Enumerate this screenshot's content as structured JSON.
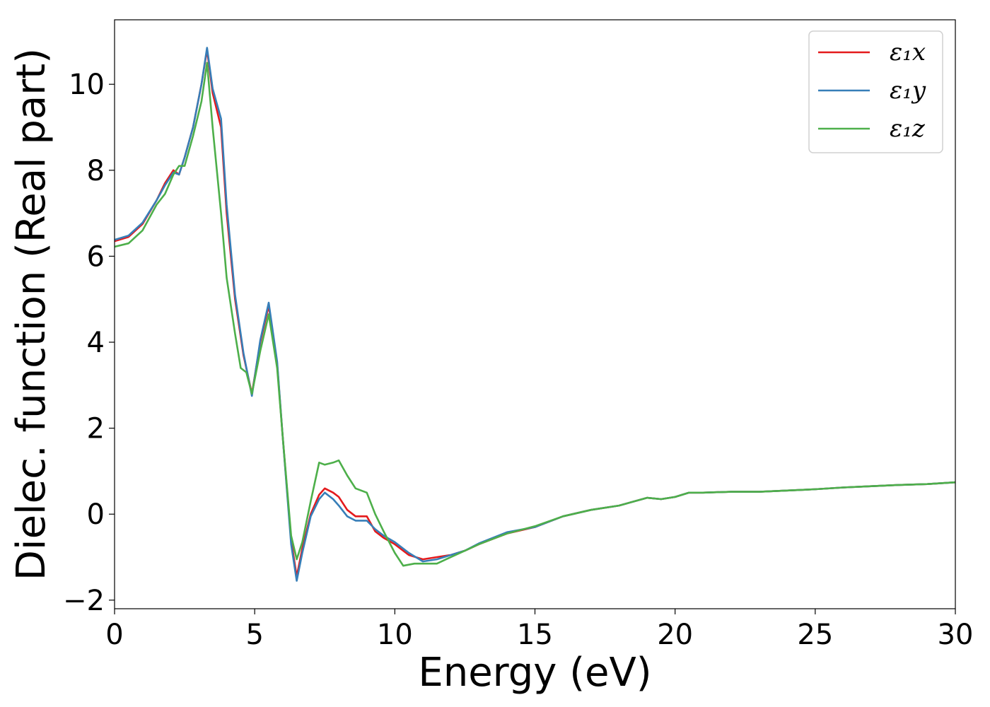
{
  "chart_data": {
    "type": "line",
    "xlabel": "Energy (eV)",
    "ylabel": "Dielec. function (Real part)",
    "xlim": [
      0,
      30
    ],
    "ylim": [
      -2.2,
      11.5
    ],
    "xticks": [
      0,
      5,
      10,
      15,
      20,
      25,
      30
    ],
    "xtick_labels": [
      "0",
      "5",
      "10",
      "15",
      "20",
      "25",
      "30"
    ],
    "yticks": [
      -2,
      0,
      2,
      4,
      6,
      8,
      10
    ],
    "ytick_labels": [
      "−2",
      "0",
      "2",
      "4",
      "6",
      "8",
      "10"
    ],
    "grid": false,
    "legend_position": "top-right",
    "series": [
      {
        "name": "ε₁x",
        "color": "#e41a1c",
        "x": [
          0,
          0.5,
          1.0,
          1.5,
          1.8,
          2.1,
          2.3,
          2.5,
          2.8,
          3.1,
          3.3,
          3.5,
          3.8,
          4.0,
          4.3,
          4.6,
          4.9,
          5.2,
          5.5,
          5.8,
          6.0,
          6.3,
          6.5,
          6.7,
          7.0,
          7.3,
          7.5,
          7.8,
          8.0,
          8.3,
          8.6,
          9.0,
          9.3,
          9.6,
          10.0,
          10.5,
          11.0,
          11.5,
          12.0,
          12.5,
          13.0,
          14.0,
          15.0,
          16.0,
          17.0,
          18.0,
          19.0,
          19.5,
          20.0,
          20.5,
          21.0,
          22.0,
          23.0,
          24.0,
          25.0,
          26.0,
          27.0,
          28.0,
          29.0,
          30.0
        ],
        "y": [
          6.35,
          6.45,
          6.75,
          7.3,
          7.7,
          8.0,
          7.9,
          8.3,
          9.0,
          10.0,
          10.8,
          9.8,
          9.0,
          7.0,
          5.0,
          3.7,
          2.8,
          4.0,
          4.85,
          3.5,
          1.8,
          -0.6,
          -1.45,
          -0.8,
          0.0,
          0.45,
          0.6,
          0.5,
          0.4,
          0.1,
          -0.05,
          -0.05,
          -0.4,
          -0.55,
          -0.7,
          -0.95,
          -1.05,
          -1.0,
          -0.95,
          -0.85,
          -0.7,
          -0.45,
          -0.3,
          -0.05,
          0.1,
          0.2,
          0.38,
          0.35,
          0.4,
          0.5,
          0.5,
          0.52,
          0.52,
          0.55,
          0.58,
          0.62,
          0.65,
          0.68,
          0.7,
          0.74
        ]
      },
      {
        "name": "ε₁y",
        "color": "#377eb8",
        "x": [
          0,
          0.5,
          1.0,
          1.5,
          1.8,
          2.1,
          2.3,
          2.5,
          2.8,
          3.1,
          3.3,
          3.5,
          3.8,
          4.0,
          4.3,
          4.6,
          4.9,
          5.2,
          5.5,
          5.8,
          6.0,
          6.3,
          6.5,
          6.7,
          7.0,
          7.3,
          7.5,
          7.8,
          8.0,
          8.3,
          8.6,
          9.0,
          9.3,
          9.6,
          10.0,
          10.5,
          11.0,
          11.5,
          12.0,
          12.5,
          13.0,
          14.0,
          15.0,
          16.0,
          17.0,
          18.0,
          19.0,
          19.5,
          20.0,
          20.5,
          21.0,
          22.0,
          23.0,
          24.0,
          25.0,
          26.0,
          27.0,
          28.0,
          29.0,
          30.0
        ],
        "y": [
          6.38,
          6.48,
          6.78,
          7.3,
          7.65,
          7.95,
          7.9,
          8.3,
          9.0,
          10.0,
          10.85,
          9.9,
          9.2,
          7.2,
          5.1,
          3.75,
          2.75,
          4.05,
          4.92,
          3.55,
          1.8,
          -0.7,
          -1.55,
          -0.9,
          -0.05,
          0.35,
          0.5,
          0.35,
          0.2,
          -0.05,
          -0.15,
          -0.15,
          -0.35,
          -0.5,
          -0.65,
          -0.9,
          -1.1,
          -1.05,
          -0.95,
          -0.85,
          -0.68,
          -0.42,
          -0.3,
          -0.05,
          0.1,
          0.2,
          0.38,
          0.35,
          0.4,
          0.5,
          0.5,
          0.52,
          0.52,
          0.55,
          0.58,
          0.62,
          0.65,
          0.68,
          0.7,
          0.74
        ]
      },
      {
        "name": "ε₁z",
        "color": "#4daf4a",
        "x": [
          0,
          0.5,
          1.0,
          1.5,
          1.8,
          2.1,
          2.3,
          2.5,
          2.8,
          3.1,
          3.3,
          3.5,
          3.8,
          4.0,
          4.3,
          4.5,
          4.7,
          4.9,
          5.2,
          5.5,
          5.8,
          6.0,
          6.3,
          6.5,
          6.7,
          7.0,
          7.3,
          7.5,
          7.8,
          8.0,
          8.3,
          8.6,
          9.0,
          9.3,
          9.6,
          10.0,
          10.3,
          10.7,
          11.0,
          11.5,
          12.0,
          12.5,
          13.0,
          14.0,
          15.0,
          16.0,
          17.0,
          18.0,
          19.0,
          19.5,
          20.0,
          20.5,
          21.0,
          22.0,
          23.0,
          24.0,
          25.0,
          26.0,
          27.0,
          28.0,
          29.0,
          30.0
        ],
        "y": [
          6.22,
          6.3,
          6.6,
          7.2,
          7.45,
          7.9,
          8.1,
          8.1,
          8.8,
          9.6,
          10.5,
          9.0,
          7.0,
          5.5,
          4.2,
          3.4,
          3.3,
          2.8,
          3.8,
          4.65,
          3.4,
          1.8,
          -0.5,
          -1.05,
          -0.65,
          0.3,
          1.2,
          1.15,
          1.2,
          1.25,
          0.9,
          0.6,
          0.5,
          0.0,
          -0.4,
          -0.9,
          -1.2,
          -1.15,
          -1.15,
          -1.15,
          -1.0,
          -0.85,
          -0.7,
          -0.45,
          -0.28,
          -0.05,
          0.1,
          0.2,
          0.38,
          0.35,
          0.4,
          0.5,
          0.5,
          0.52,
          0.52,
          0.55,
          0.58,
          0.62,
          0.65,
          0.68,
          0.7,
          0.74
        ]
      }
    ]
  }
}
